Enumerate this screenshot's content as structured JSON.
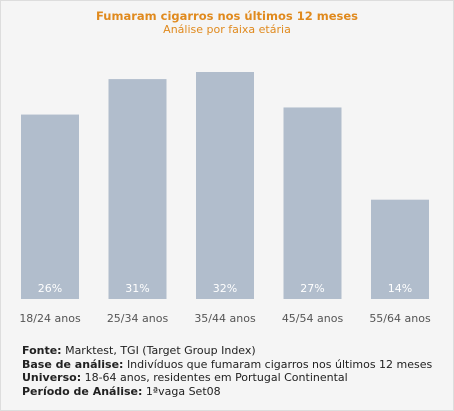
{
  "header": {
    "title": "Fumaram cigarros nos últimos 12 meses",
    "subtitle": "Análise por faixa etária"
  },
  "chart_data": {
    "type": "bar",
    "title": "Fumaram cigarros nos últimos 12 meses",
    "subtitle": "Análise por faixa etária",
    "categories": [
      "18/24 anos",
      "25/34 anos",
      "35/44 anos",
      "45/54 anos",
      "55/64 anos"
    ],
    "values": [
      26,
      31,
      32,
      27,
      14
    ],
    "value_labels": [
      "26%",
      "31%",
      "32%",
      "27%",
      "14%"
    ],
    "ylim": [
      0,
      32
    ],
    "grid": false,
    "legend": "none",
    "colors": {
      "bar": "#b1bdcc",
      "value_label": "#ffffff",
      "tick_label": "#555555"
    }
  },
  "notes": {
    "source_label": "Fonte:",
    "source_value": "Marktest, TGI (Target Group Index)",
    "base_label": "Base de análise:",
    "base_value": "Indivíduos que fumaram cigarros nos últimos 12 meses",
    "universe_label": "Universo:",
    "universe_value": "18-64 anos, residentes em Portugal Continental",
    "period_label": "Período de Análise:",
    "period_value": "1ªvaga Set08"
  }
}
